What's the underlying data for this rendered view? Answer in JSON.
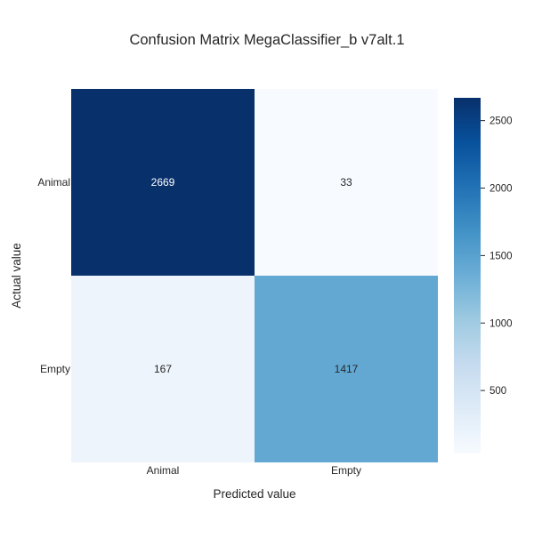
{
  "chart_data": {
    "type": "heatmap",
    "title": "Confusion Matrix MegaClassifier_b v7alt.1",
    "xlabel": "Predicted value",
    "ylabel": "Actual value",
    "x_categories": [
      "Animal",
      "Empty"
    ],
    "y_categories": [
      "Animal",
      "Empty"
    ],
    "values": [
      [
        2669,
        33
      ],
      [
        167,
        1417
      ]
    ],
    "color_scale": {
      "name": "Blues",
      "min": 33,
      "max": 2669,
      "ticks": [
        500,
        1000,
        1500,
        2000,
        2500
      ],
      "stops": [
        "#f7fbff",
        "#deebf7",
        "#c6dbef",
        "#9ecae1",
        "#6baed6",
        "#4292c6",
        "#2171b5",
        "#08519c",
        "#08306b"
      ]
    },
    "colors": {
      "light_text": "#ffffff",
      "dark_text": "#262626"
    }
  }
}
